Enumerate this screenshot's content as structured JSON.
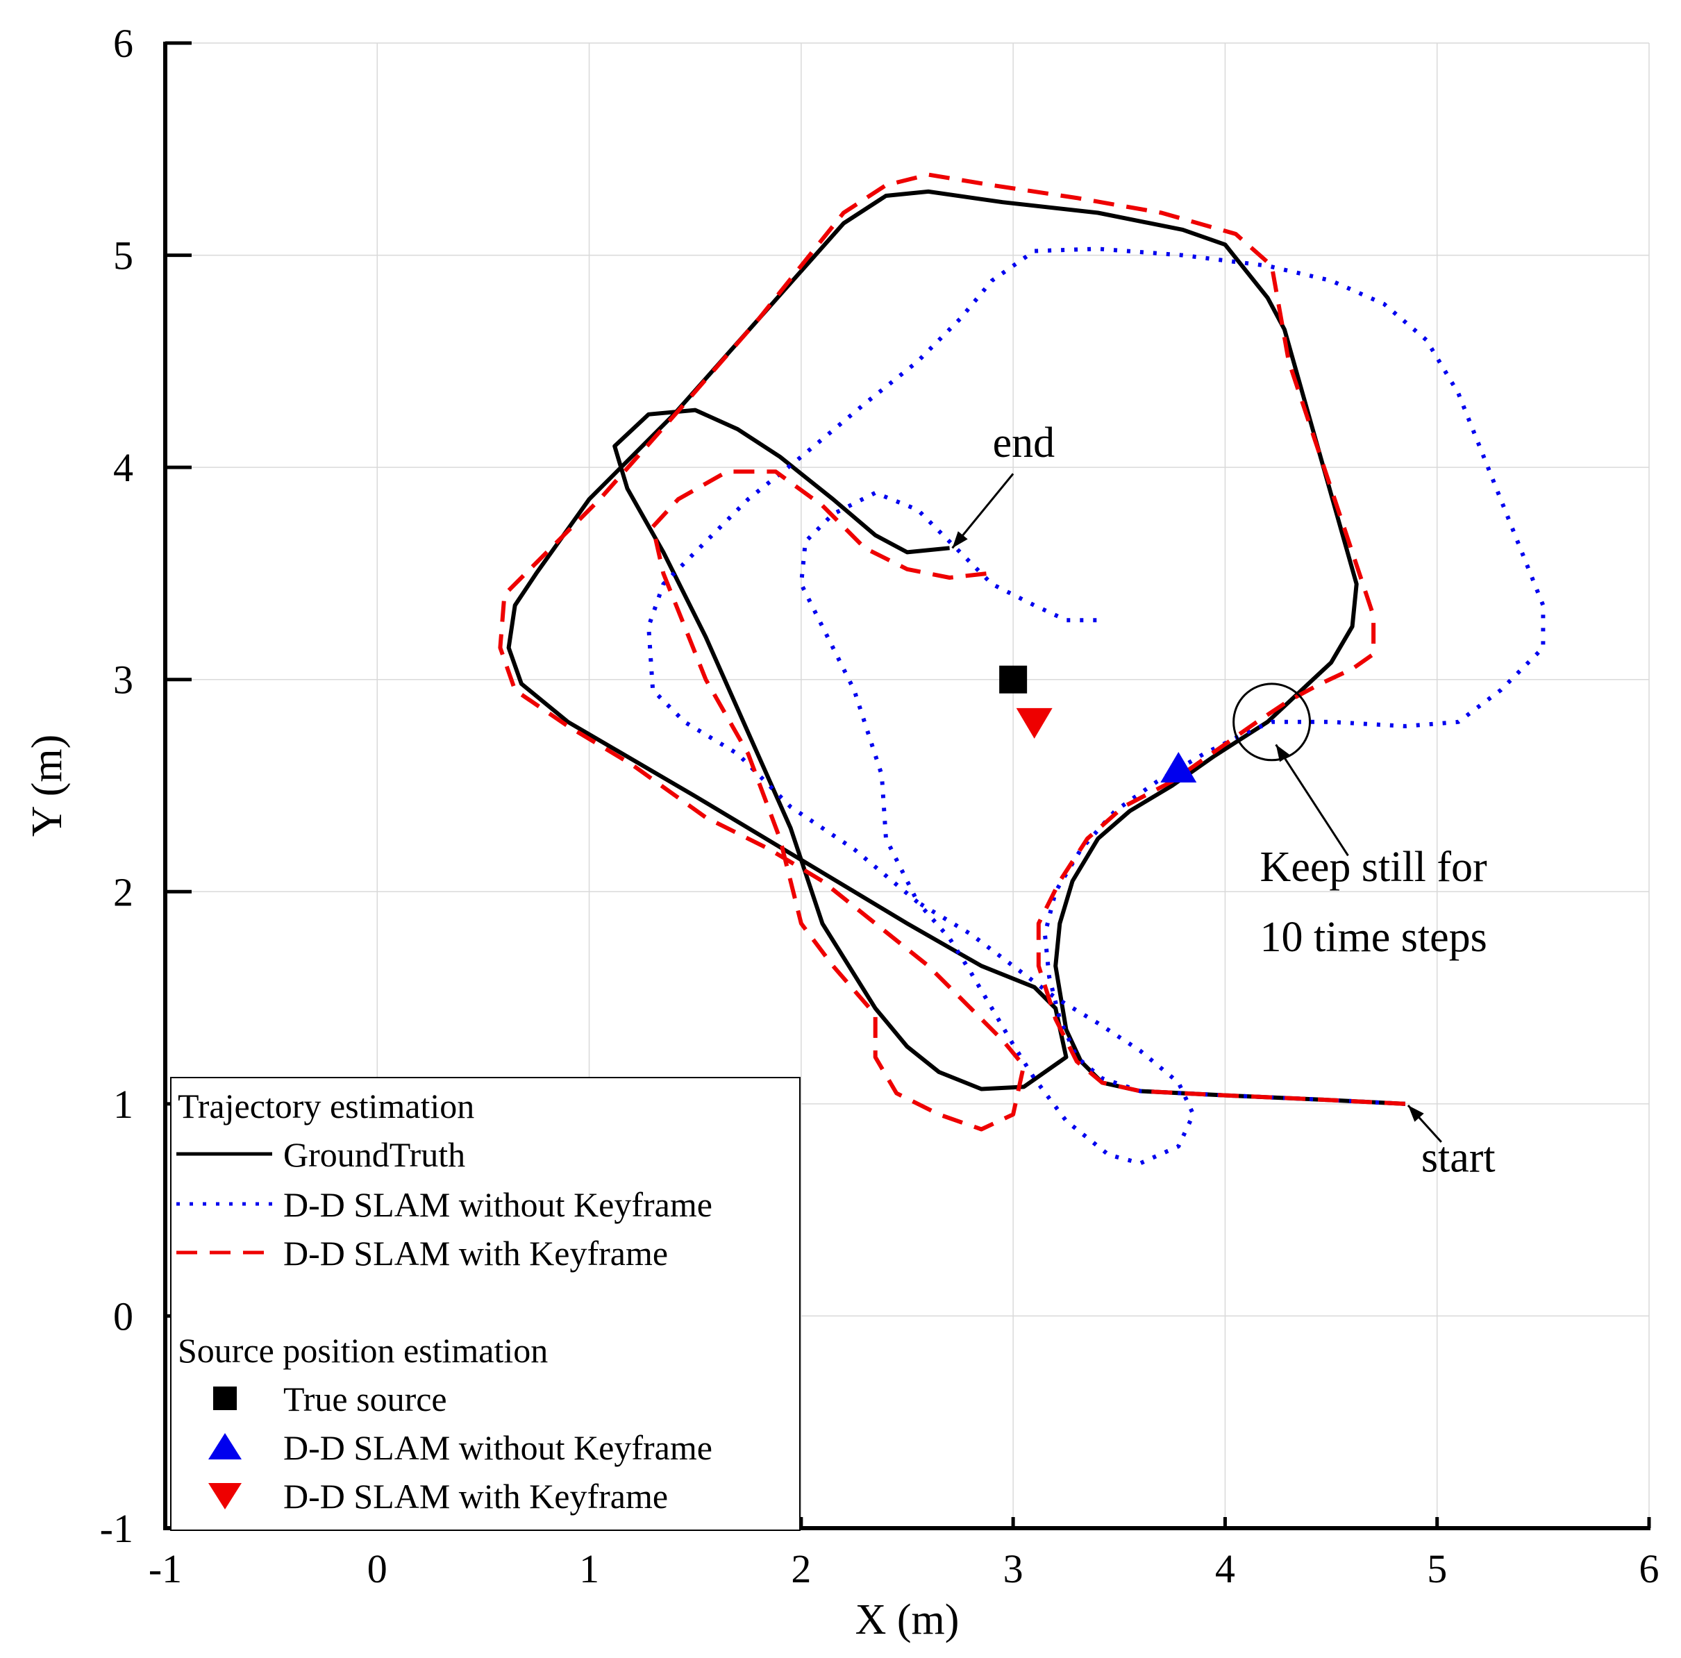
{
  "chart_data": {
    "type": "line",
    "title": "",
    "xlabel": "X (m)",
    "ylabel": "Y (m)",
    "xlim": [
      -1,
      6
    ],
    "ylim": [
      -1,
      6
    ],
    "xticks": [
      -1,
      0,
      1,
      2,
      3,
      4,
      5,
      6
    ],
    "yticks": [
      -1,
      0,
      1,
      2,
      3,
      4,
      5,
      6
    ],
    "grid": true,
    "series": [
      {
        "name": "GroundTruth",
        "color": "#000000",
        "style": "solid",
        "points": [
          [
            4.85,
            1.0
          ],
          [
            4.45,
            1.02
          ],
          [
            4.0,
            1.04
          ],
          [
            3.6,
            1.06
          ],
          [
            3.42,
            1.1
          ],
          [
            3.32,
            1.2
          ],
          [
            3.25,
            1.35
          ],
          [
            3.2,
            1.65
          ],
          [
            3.22,
            1.85
          ],
          [
            3.28,
            2.05
          ],
          [
            3.4,
            2.25
          ],
          [
            3.55,
            2.38
          ],
          [
            3.75,
            2.5
          ],
          [
            3.95,
            2.64
          ],
          [
            4.2,
            2.8
          ],
          [
            4.5,
            3.08
          ],
          [
            4.6,
            3.25
          ],
          [
            4.62,
            3.45
          ],
          [
            4.45,
            4.05
          ],
          [
            4.28,
            4.65
          ],
          [
            4.2,
            4.8
          ],
          [
            4.0,
            5.05
          ],
          [
            3.8,
            5.12
          ],
          [
            3.4,
            5.2
          ],
          [
            2.95,
            5.25
          ],
          [
            2.6,
            5.3
          ],
          [
            2.4,
            5.28
          ],
          [
            2.2,
            5.15
          ],
          [
            1.8,
            4.7
          ],
          [
            1.4,
            4.25
          ],
          [
            1.0,
            3.85
          ],
          [
            0.75,
            3.5
          ],
          [
            0.65,
            3.35
          ],
          [
            0.62,
            3.15
          ],
          [
            0.68,
            2.98
          ],
          [
            0.9,
            2.8
          ],
          [
            1.5,
            2.45
          ],
          [
            2.0,
            2.15
          ],
          [
            2.5,
            1.85
          ],
          [
            2.85,
            1.65
          ],
          [
            3.1,
            1.55
          ],
          [
            3.2,
            1.45
          ],
          [
            3.25,
            1.22
          ],
          [
            3.05,
            1.08
          ],
          [
            2.85,
            1.07
          ],
          [
            2.65,
            1.15
          ],
          [
            2.5,
            1.27
          ],
          [
            2.35,
            1.45
          ],
          [
            2.1,
            1.85
          ],
          [
            1.95,
            2.3
          ],
          [
            1.75,
            2.75
          ],
          [
            1.55,
            3.2
          ],
          [
            1.35,
            3.6
          ],
          [
            1.18,
            3.9
          ],
          [
            1.12,
            4.1
          ],
          [
            1.28,
            4.25
          ],
          [
            1.5,
            4.27
          ],
          [
            1.7,
            4.18
          ],
          [
            1.9,
            4.05
          ],
          [
            2.15,
            3.85
          ],
          [
            2.35,
            3.68
          ],
          [
            2.5,
            3.6
          ],
          [
            2.7,
            3.62
          ]
        ]
      },
      {
        "name": "D-D SLAM without Keyframe",
        "color": "#0000ee",
        "style": "dotted",
        "points": [
          [
            4.85,
            1.0
          ],
          [
            4.45,
            1.02
          ],
          [
            4.0,
            1.04
          ],
          [
            3.6,
            1.06
          ],
          [
            3.42,
            1.12
          ],
          [
            3.3,
            1.22
          ],
          [
            3.22,
            1.4
          ],
          [
            3.17,
            1.6
          ],
          [
            3.15,
            1.8
          ],
          [
            3.2,
            2.0
          ],
          [
            3.32,
            2.2
          ],
          [
            3.48,
            2.38
          ],
          [
            3.68,
            2.52
          ],
          [
            3.9,
            2.65
          ],
          [
            4.1,
            2.75
          ],
          [
            4.22,
            2.8
          ],
          [
            4.5,
            2.8
          ],
          [
            4.85,
            2.78
          ],
          [
            5.1,
            2.8
          ],
          [
            5.3,
            2.95
          ],
          [
            5.5,
            3.15
          ],
          [
            5.5,
            3.35
          ],
          [
            5.42,
            3.55
          ],
          [
            5.3,
            3.85
          ],
          [
            5.2,
            4.1
          ],
          [
            5.1,
            4.35
          ],
          [
            4.95,
            4.6
          ],
          [
            4.75,
            4.77
          ],
          [
            4.5,
            4.88
          ],
          [
            4.2,
            4.95
          ],
          [
            3.8,
            5.0
          ],
          [
            3.4,
            5.03
          ],
          [
            3.1,
            5.02
          ],
          [
            2.9,
            4.88
          ],
          [
            2.75,
            4.7
          ],
          [
            2.55,
            4.5
          ],
          [
            2.3,
            4.3
          ],
          [
            2.0,
            4.05
          ],
          [
            1.75,
            3.85
          ],
          [
            1.55,
            3.65
          ],
          [
            1.35,
            3.45
          ],
          [
            1.28,
            3.25
          ],
          [
            1.3,
            2.95
          ],
          [
            1.45,
            2.8
          ],
          [
            1.7,
            2.65
          ],
          [
            1.95,
            2.4
          ],
          [
            2.25,
            2.2
          ],
          [
            2.55,
            1.95
          ],
          [
            2.7,
            1.78
          ],
          [
            2.8,
            1.62
          ],
          [
            2.9,
            1.45
          ],
          [
            3.0,
            1.28
          ],
          [
            3.1,
            1.12
          ],
          [
            3.25,
            0.92
          ],
          [
            3.45,
            0.76
          ],
          [
            3.6,
            0.72
          ],
          [
            3.78,
            0.8
          ],
          [
            3.85,
            0.95
          ],
          [
            3.78,
            1.1
          ],
          [
            3.6,
            1.25
          ],
          [
            3.4,
            1.38
          ],
          [
            3.2,
            1.5
          ],
          [
            3.0,
            1.65
          ],
          [
            2.8,
            1.8
          ],
          [
            2.55,
            1.95
          ],
          [
            2.4,
            2.25
          ],
          [
            2.38,
            2.55
          ],
          [
            2.25,
            2.95
          ],
          [
            2.1,
            3.25
          ],
          [
            2.0,
            3.45
          ],
          [
            2.02,
            3.65
          ],
          [
            2.15,
            3.78
          ],
          [
            2.35,
            3.88
          ],
          [
            2.55,
            3.8
          ],
          [
            2.75,
            3.6
          ],
          [
            2.9,
            3.45
          ],
          [
            3.1,
            3.35
          ],
          [
            3.25,
            3.28
          ],
          [
            3.4,
            3.28
          ]
        ]
      },
      {
        "name": "D-D SLAM with Keyframe",
        "color": "#ee0000",
        "style": "dashed",
        "points": [
          [
            4.85,
            1.0
          ],
          [
            4.45,
            1.02
          ],
          [
            4.0,
            1.04
          ],
          [
            3.6,
            1.06
          ],
          [
            3.42,
            1.1
          ],
          [
            3.3,
            1.2
          ],
          [
            3.2,
            1.4
          ],
          [
            3.12,
            1.65
          ],
          [
            3.12,
            1.85
          ],
          [
            3.22,
            2.05
          ],
          [
            3.35,
            2.25
          ],
          [
            3.52,
            2.4
          ],
          [
            3.75,
            2.52
          ],
          [
            3.95,
            2.66
          ],
          [
            4.15,
            2.8
          ],
          [
            4.3,
            2.9
          ],
          [
            4.45,
            2.98
          ],
          [
            4.6,
            3.05
          ],
          [
            4.7,
            3.12
          ],
          [
            4.7,
            3.3
          ],
          [
            4.6,
            3.6
          ],
          [
            4.45,
            4.05
          ],
          [
            4.3,
            4.5
          ],
          [
            4.22,
            4.95
          ],
          [
            4.05,
            5.1
          ],
          [
            3.7,
            5.2
          ],
          [
            3.3,
            5.27
          ],
          [
            2.9,
            5.33
          ],
          [
            2.6,
            5.38
          ],
          [
            2.4,
            5.33
          ],
          [
            2.2,
            5.2
          ],
          [
            1.8,
            4.7
          ],
          [
            1.45,
            4.3
          ],
          [
            1.05,
            3.85
          ],
          [
            0.75,
            3.55
          ],
          [
            0.6,
            3.4
          ],
          [
            0.58,
            3.15
          ],
          [
            0.65,
            2.95
          ],
          [
            0.9,
            2.78
          ],
          [
            1.2,
            2.6
          ],
          [
            1.55,
            2.35
          ],
          [
            1.85,
            2.2
          ],
          [
            2.1,
            2.05
          ],
          [
            2.35,
            1.85
          ],
          [
            2.6,
            1.65
          ],
          [
            2.8,
            1.45
          ],
          [
            2.95,
            1.3
          ],
          [
            3.05,
            1.18
          ],
          [
            3.0,
            0.95
          ],
          [
            2.85,
            0.88
          ],
          [
            2.65,
            0.95
          ],
          [
            2.45,
            1.05
          ],
          [
            2.35,
            1.22
          ],
          [
            2.35,
            1.42
          ],
          [
            2.15,
            1.65
          ],
          [
            2.0,
            1.85
          ],
          [
            1.9,
            2.25
          ],
          [
            1.75,
            2.65
          ],
          [
            1.55,
            3.0
          ],
          [
            1.45,
            3.25
          ],
          [
            1.35,
            3.5
          ],
          [
            1.3,
            3.72
          ],
          [
            1.42,
            3.85
          ],
          [
            1.65,
            3.98
          ],
          [
            1.88,
            3.98
          ],
          [
            2.1,
            3.82
          ],
          [
            2.3,
            3.62
          ],
          [
            2.5,
            3.52
          ],
          [
            2.7,
            3.48
          ],
          [
            2.88,
            3.5
          ]
        ]
      }
    ],
    "markers": [
      {
        "name": "True source",
        "x": 3.0,
        "y": 3.0,
        "shape": "square",
        "color": "#000000"
      },
      {
        "name": "D-D SLAM without Keyframe",
        "x": 3.78,
        "y": 2.58,
        "shape": "triangle-up",
        "color": "#0000ee"
      },
      {
        "name": "D-D SLAM with Keyframe",
        "x": 3.1,
        "y": 2.8,
        "shape": "triangle-down",
        "color": "#ee0000"
      }
    ],
    "annotations": [
      {
        "text": "end",
        "point": [
          2.7,
          3.6
        ],
        "text_pos": [
          3.05,
          4.05
        ]
      },
      {
        "text": "start",
        "point": [
          4.85,
          0.98
        ],
        "text_pos": [
          5.1,
          0.68
        ]
      },
      {
        "text": "Keep still for",
        "point": [
          4.22,
          2.7
        ],
        "text_pos": [
          4.7,
          2.05
        ]
      },
      {
        "text": "10 time steps",
        "text_pos": [
          4.7,
          1.72
        ]
      }
    ],
    "keep_still_circle": {
      "x": 4.22,
      "y": 2.8,
      "r": 0.18
    },
    "legend": {
      "placement": "bottom-left",
      "trajectory_title": "Trajectory estimation",
      "source_title": "Source position estimation",
      "trajectory_items": [
        "GroundTruth",
        "D-D SLAM without Keyframe",
        "D-D SLAM with Keyframe"
      ],
      "source_items": [
        "True source",
        "D-D SLAM without Keyframe",
        "D-D SLAM with Keyframe"
      ]
    }
  }
}
